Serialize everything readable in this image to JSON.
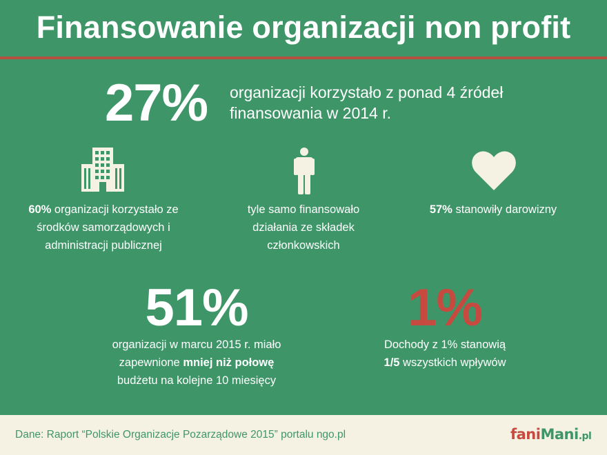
{
  "title": "Finansowanie organizacji non profit",
  "headline": {
    "value": "27%",
    "text_line1": "organizacji korzystało z ponad 4 źródeł",
    "text_line2": "finansowania w 2014 r."
  },
  "columns": [
    {
      "icon": "building-icon",
      "bold": "60%",
      "line1": " organizacji korzystało ze",
      "line2": "środków samorządowych i",
      "line3": "administracji publicznej"
    },
    {
      "icon": "person-icon",
      "line1": "tyle samo finansowało",
      "line2": "działania ze składek",
      "line3": "członkowskich"
    },
    {
      "icon": "heart-icon",
      "bold": "57%",
      "line1": " stanowiły darowizny"
    }
  ],
  "stat51": {
    "value": "51%",
    "line1": "organizacji w marcu 2015 r. miało",
    "line2_pre": "zapewnione ",
    "line2_bold": "mniej niż połowę",
    "line3": "budżetu na kolejne 10 miesięcy"
  },
  "stat1": {
    "value": "1%",
    "line1": "Dochody z 1% stanowią",
    "line2_bold": "1/5",
    "line2_post": " wszystkich wpływów"
  },
  "footer": {
    "source": "Dane: Raport “Polskie Organizacje Pozarządowe 2015” portalu ngo.pl",
    "brand_fani": "fani",
    "brand_mani": "Mani",
    "brand_tld": ".pl"
  },
  "colors": {
    "background": "#3e9668",
    "accent_red": "#c64a40",
    "footer_bg": "#f6f2e3"
  }
}
